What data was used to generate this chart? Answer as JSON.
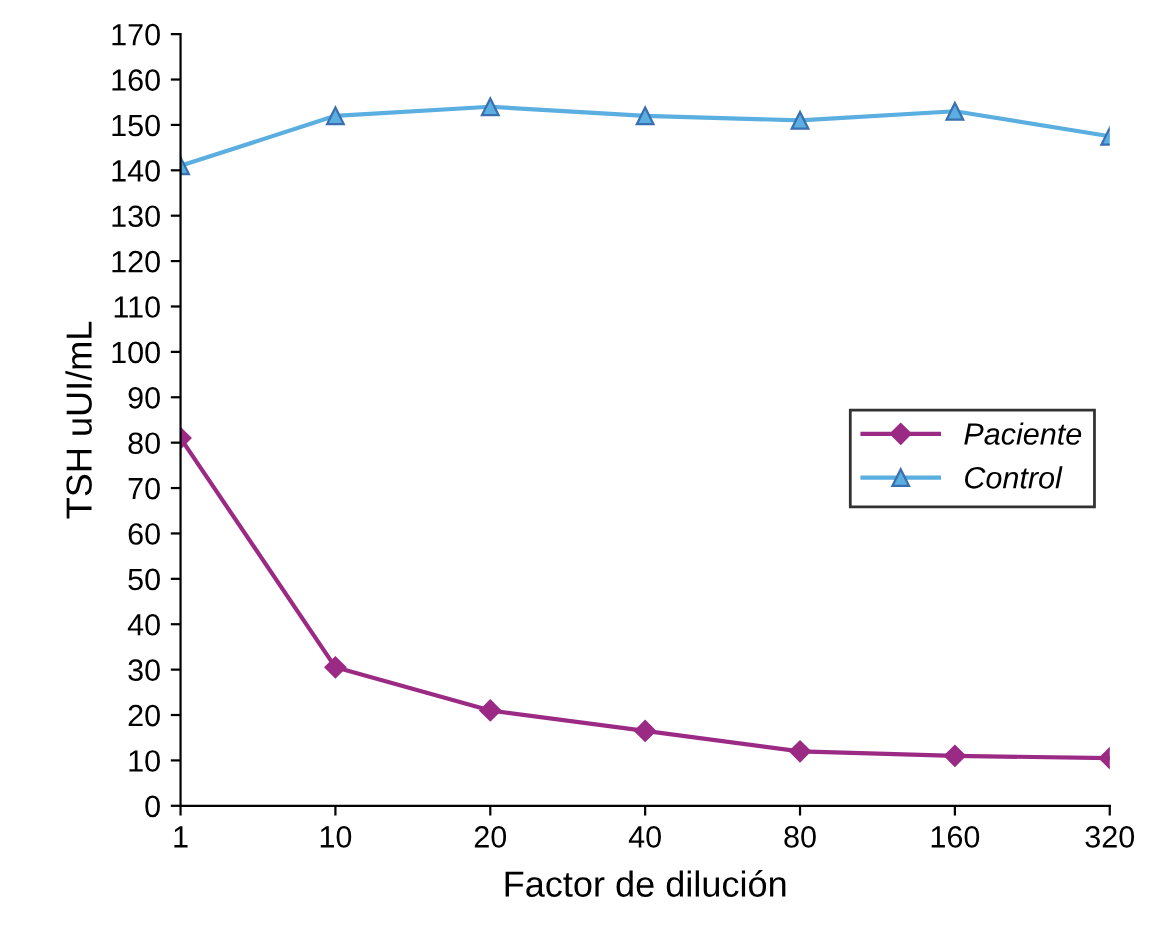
{
  "chart_data": {
    "type": "line",
    "xlabel": "Factor de dilución",
    "ylabel": "TSH uUI/mL",
    "categories": [
      "1",
      "10",
      "20",
      "40",
      "80",
      "160",
      "320"
    ],
    "series": [
      {
        "name": "Paciente",
        "color": "#9b2a84",
        "marker": "diamond",
        "values": [
          81,
          30.5,
          21,
          16.5,
          12,
          11,
          10.5
        ]
      },
      {
        "name": "Control",
        "color": "#5aaee0",
        "marker": "triangle",
        "values": [
          141,
          152,
          154,
          152,
          151,
          153,
          147.5
        ]
      }
    ],
    "ylim": [
      0,
      170
    ],
    "yticks": [
      0,
      10,
      20,
      30,
      40,
      50,
      60,
      70,
      80,
      90,
      100,
      110,
      120,
      130,
      140,
      150,
      160,
      170
    ],
    "grid": false,
    "legend": "right",
    "line_style": "solid"
  }
}
